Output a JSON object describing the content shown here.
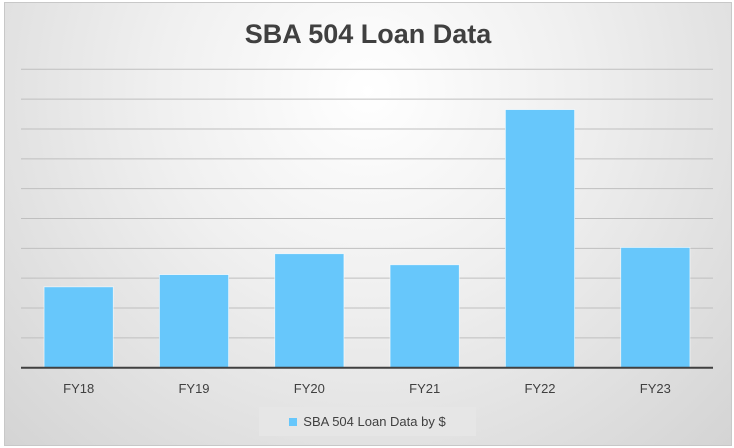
{
  "chart_data": {
    "type": "bar",
    "title": "SBA 504 Loan Data",
    "categories": [
      "FY18",
      "FY19",
      "FY20",
      "FY21",
      "FY22",
      "FY23"
    ],
    "series": [
      {
        "name": "SBA 504 Loan Data by $",
        "values": [
          2.71,
          3.12,
          3.82,
          3.45,
          8.65,
          4.03
        ]
      }
    ],
    "ylim": [
      0,
      10
    ],
    "y_ticks_labeled": false,
    "grid": true,
    "legend": "bottom",
    "colors": {
      "bar": "#67c7fb",
      "grid": "#bfbfbf",
      "axis": "#404040"
    }
  }
}
